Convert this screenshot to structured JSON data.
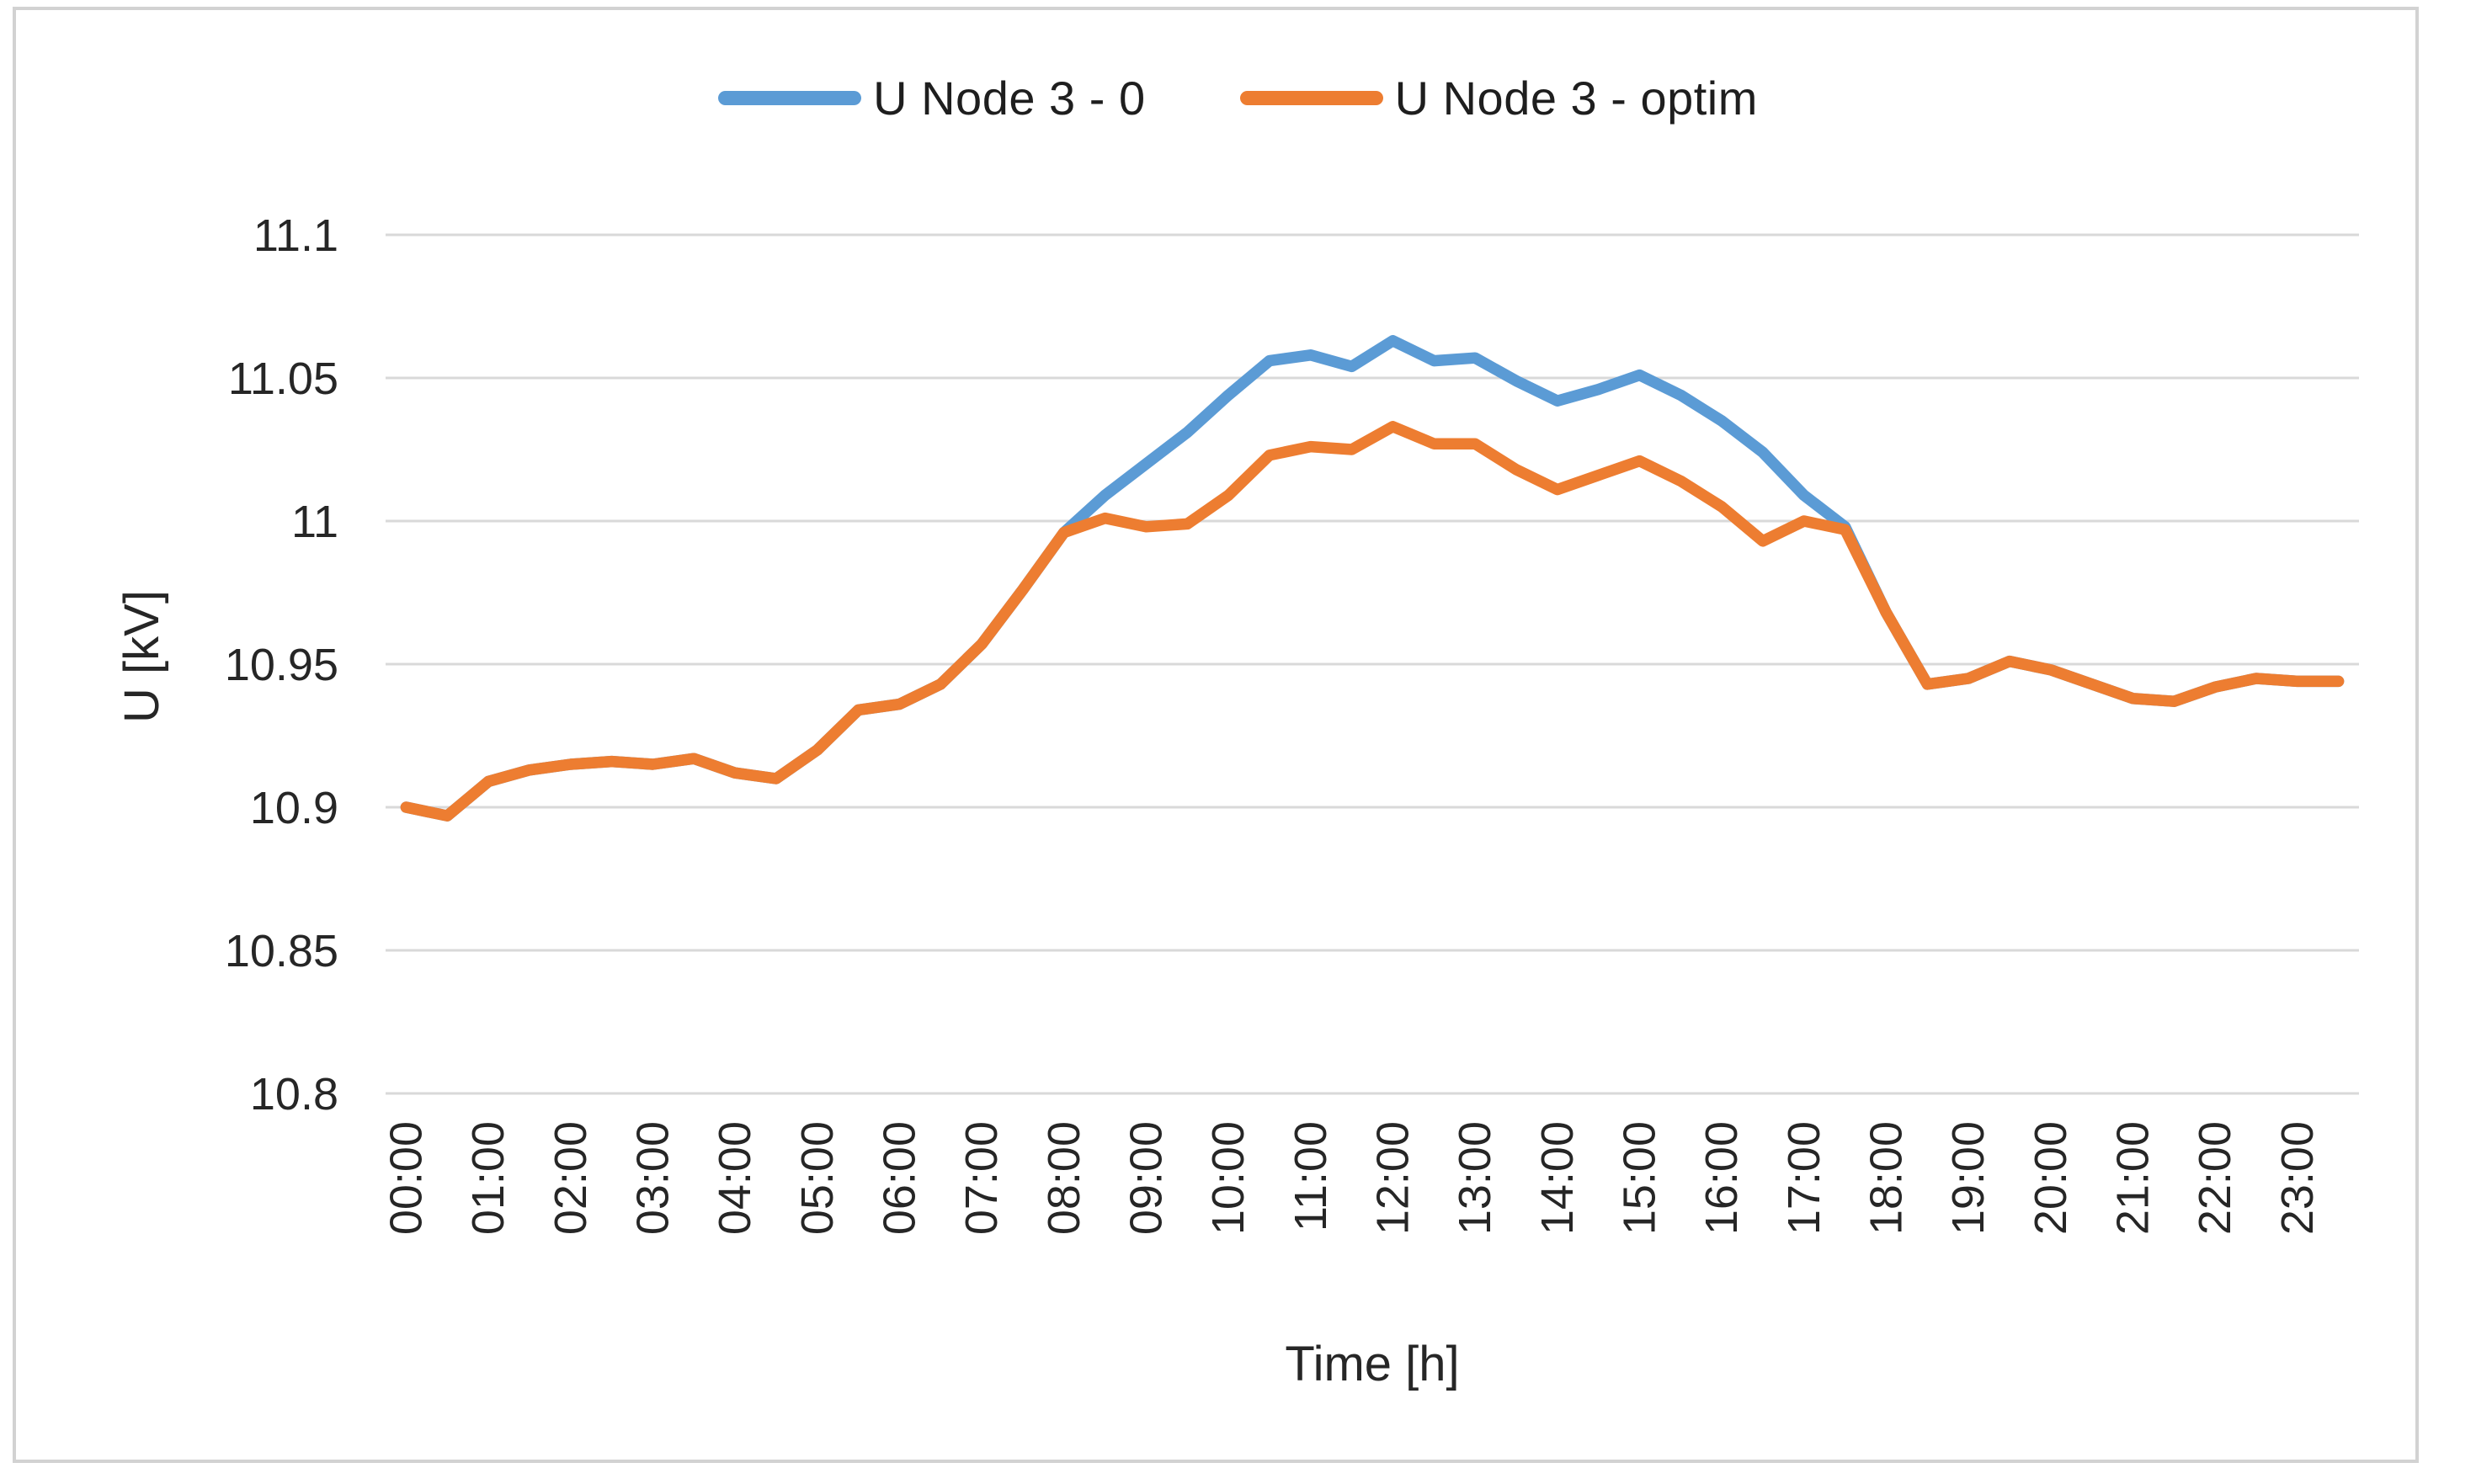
{
  "frame": {
    "border_color": "#d2d2d2",
    "background": "#ffffff"
  },
  "legend": {
    "items": [
      {
        "label": "U Node 3 - 0",
        "color": "#5B9BD5"
      },
      {
        "label": "U Node 3 - optim",
        "color": "#ED7D31"
      }
    ]
  },
  "axis_text_color": "#262626",
  "gridline_color": "#d9d9d9",
  "chart_data": {
    "type": "line",
    "title": "",
    "xlabel": "Time [h]",
    "ylabel": "U [kV]",
    "ylim": [
      10.8,
      11.1
    ],
    "ytick_step": 0.05,
    "ytick_labels": [
      "10.8",
      "10.85",
      "10.9",
      "10.95",
      "11",
      "11.05",
      "11.1"
    ],
    "grid": true,
    "legend_position": "top-center",
    "x_tick_labels_shown": "hourly only, rotated 90 degrees",
    "categories": [
      "00:00",
      "00:30",
      "01:00",
      "01:30",
      "02:00",
      "02:30",
      "03:00",
      "03:30",
      "04:00",
      "04:30",
      "05:00",
      "05:30",
      "06:00",
      "06:30",
      "07:00",
      "07:30",
      "08:00",
      "08:30",
      "09:00",
      "09:30",
      "10:00",
      "10:30",
      "11:00",
      "11:30",
      "12:00",
      "12:30",
      "13:00",
      "13:30",
      "14:00",
      "14:30",
      "15:00",
      "15:30",
      "16:00",
      "16:30",
      "17:00",
      "17:30",
      "18:00",
      "18:30",
      "19:00",
      "19:30",
      "20:00",
      "20:30",
      "21:00",
      "21:30",
      "22:00",
      "22:30",
      "23:00",
      "23:30"
    ],
    "series": [
      {
        "name": "U Node 3 - 0",
        "color": "#5B9BD5",
        "values": [
          10.9,
          10.897,
          10.909,
          10.913,
          10.915,
          10.916,
          10.915,
          10.917,
          10.912,
          10.91,
          10.92,
          10.934,
          10.936,
          10.943,
          10.957,
          10.976,
          10.996,
          11.009,
          11.02,
          11.031,
          11.044,
          11.056,
          11.058,
          11.054,
          11.063,
          11.056,
          11.057,
          11.049,
          11.042,
          11.046,
          11.051,
          11.044,
          11.035,
          11.024,
          11.009,
          10.998,
          10.968,
          10.943,
          10.945,
          10.951,
          10.948,
          10.943,
          10.938,
          10.937,
          10.942,
          10.945,
          10.944,
          10.944
        ]
      },
      {
        "name": "U Node 3 - optim",
        "color": "#ED7D31",
        "values": [
          10.9,
          10.897,
          10.909,
          10.913,
          10.915,
          10.916,
          10.915,
          10.917,
          10.912,
          10.91,
          10.92,
          10.934,
          10.936,
          10.943,
          10.957,
          10.976,
          10.996,
          11.001,
          10.998,
          10.999,
          11.009,
          11.023,
          11.026,
          11.025,
          11.033,
          11.027,
          11.027,
          11.018,
          11.011,
          11.016,
          11.021,
          11.014,
          11.005,
          10.993,
          11.0,
          10.997,
          10.968,
          10.943,
          10.945,
          10.951,
          10.948,
          10.943,
          10.938,
          10.937,
          10.942,
          10.945,
          10.944,
          10.944
        ]
      }
    ]
  }
}
